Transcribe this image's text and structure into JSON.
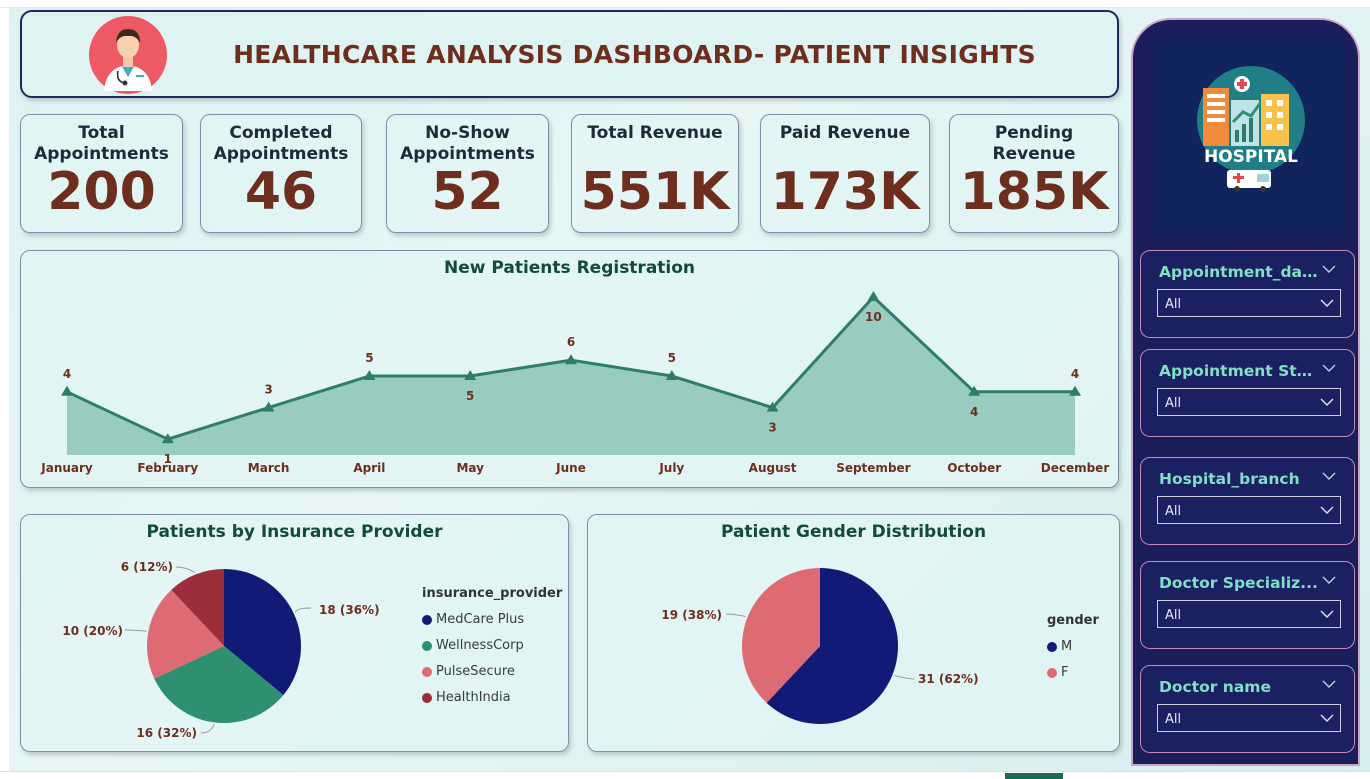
{
  "header": {
    "title": "HEALTHCARE ANALYSIS DASHBOARD- PATIENT INSIGHTS"
  },
  "kpis": [
    {
      "label": "Total Appointments",
      "value": "200"
    },
    {
      "label": "Completed Appointments",
      "value": "46"
    },
    {
      "label": "No-Show Appointments",
      "value": "52"
    },
    {
      "label": "Total Revenue",
      "value": "551K"
    },
    {
      "label": "Paid Revenue",
      "value": "173K"
    },
    {
      "label": "Pending Revenue",
      "value": "185K"
    }
  ],
  "registration_chart": {
    "title": "New Patients Registration"
  },
  "insurance_chart": {
    "title": "Patients by Insurance Provider",
    "legend_title": "insurance_provider"
  },
  "gender_chart": {
    "title": "Patient Gender Distribution",
    "legend_title": "gender"
  },
  "sidebar": {
    "logo_text": "HOSPITAL",
    "slicers": [
      {
        "label": "Appointment_date",
        "value": "All"
      },
      {
        "label": "Appointment Sta...",
        "value": "All"
      },
      {
        "label": "Hospital_branch",
        "value": "All"
      },
      {
        "label": "Doctor Specializ...",
        "value": "All"
      },
      {
        "label": "Doctor name",
        "value": "All"
      }
    ]
  },
  "colors": {
    "kpi_value": "#6e2e1e",
    "line": "#2e7d68",
    "area": "#8cc4b6",
    "medcare": "#121a78",
    "wellness": "#2e9070",
    "pulse": "#de6a74",
    "healthindia": "#9b2e3a",
    "male": "#121a78",
    "female": "#de6a74"
  },
  "chart_data": [
    {
      "type": "area",
      "title": "New Patients Registration",
      "categories": [
        "January",
        "February",
        "March",
        "April",
        "May",
        "June",
        "July",
        "August",
        "September",
        "October",
        "December"
      ],
      "values": [
        4,
        1,
        3,
        5,
        5,
        6,
        5,
        3,
        10,
        4,
        4
      ],
      "ylim": [
        0,
        10
      ],
      "grid": false,
      "legend": "none"
    },
    {
      "type": "pie",
      "title": "Patients by Insurance Provider",
      "legend_title": "insurance_provider",
      "legend_position": "right",
      "slices": [
        {
          "name": "MedCare Plus",
          "value": 18,
          "label": "18 (36%)"
        },
        {
          "name": "WellnessCorp",
          "value": 16,
          "label": "16 (32%)"
        },
        {
          "name": "PulseSecure",
          "value": 10,
          "label": "10 (20%)"
        },
        {
          "name": "HealthIndia",
          "value": 6,
          "label": "6 (12%)"
        }
      ]
    },
    {
      "type": "pie",
      "title": "Patient Gender Distribution",
      "legend_title": "gender",
      "legend_position": "right",
      "slices": [
        {
          "name": "M",
          "value": 31,
          "label": "31 (62%)"
        },
        {
          "name": "F",
          "value": 19,
          "label": "19 (38%)"
        }
      ]
    }
  ]
}
